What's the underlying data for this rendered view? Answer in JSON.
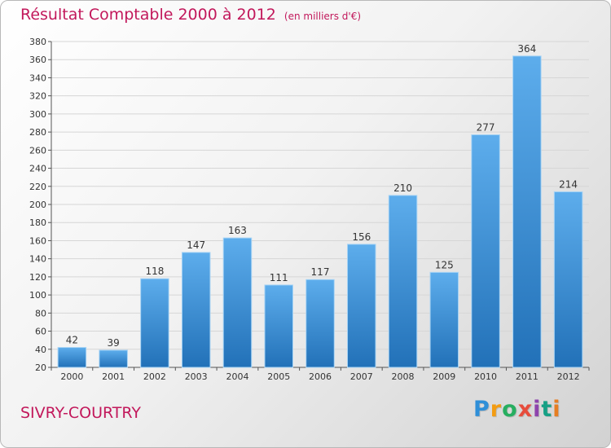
{
  "title": "Résultat Comptable 2000 à 2012",
  "subtitle": "(en milliers d'€)",
  "town": "SIVRY-COURTRY",
  "logo": {
    "letters": [
      "P",
      "r",
      "o",
      "x",
      "i",
      "t",
      "i"
    ],
    "colors": [
      "#2f8fd8",
      "#f39c12",
      "#27ae60",
      "#e74c3c",
      "#8e44ad",
      "#16a085",
      "#e67e22"
    ]
  },
  "colors": {
    "accent": "#c2185b",
    "bar_top": "#5dadec",
    "bar_bottom": "#2271b8",
    "grid": "#d6d6d6"
  },
  "chart_data": {
    "type": "bar",
    "categories": [
      "2000",
      "2001",
      "2002",
      "2003",
      "2004",
      "2005",
      "2006",
      "2007",
      "2008",
      "2009",
      "2010",
      "2011",
      "2012"
    ],
    "values": [
      42,
      39,
      118,
      147,
      163,
      111,
      117,
      156,
      210,
      125,
      277,
      364,
      214
    ],
    "data_labels": [
      "42",
      "39",
      "118",
      "147",
      "163",
      "111",
      "117",
      "156",
      "210",
      "125",
      "277",
      "364",
      "214"
    ],
    "yticks": [
      20,
      40,
      60,
      80,
      100,
      120,
      140,
      160,
      180,
      200,
      220,
      240,
      260,
      280,
      300,
      320,
      340,
      360,
      380
    ],
    "ytick_labels": [
      "20",
      "40",
      "60",
      "80",
      "100",
      "120",
      "140",
      "160",
      "180",
      "200",
      "220",
      "240",
      "260",
      "280",
      "300",
      "320",
      "340",
      "360",
      "380"
    ],
    "ylim": [
      20,
      380
    ],
    "grid": true,
    "legend": "none",
    "title": "Résultat Comptable 2000 à 2012",
    "xlabel": "",
    "ylabel": ""
  }
}
